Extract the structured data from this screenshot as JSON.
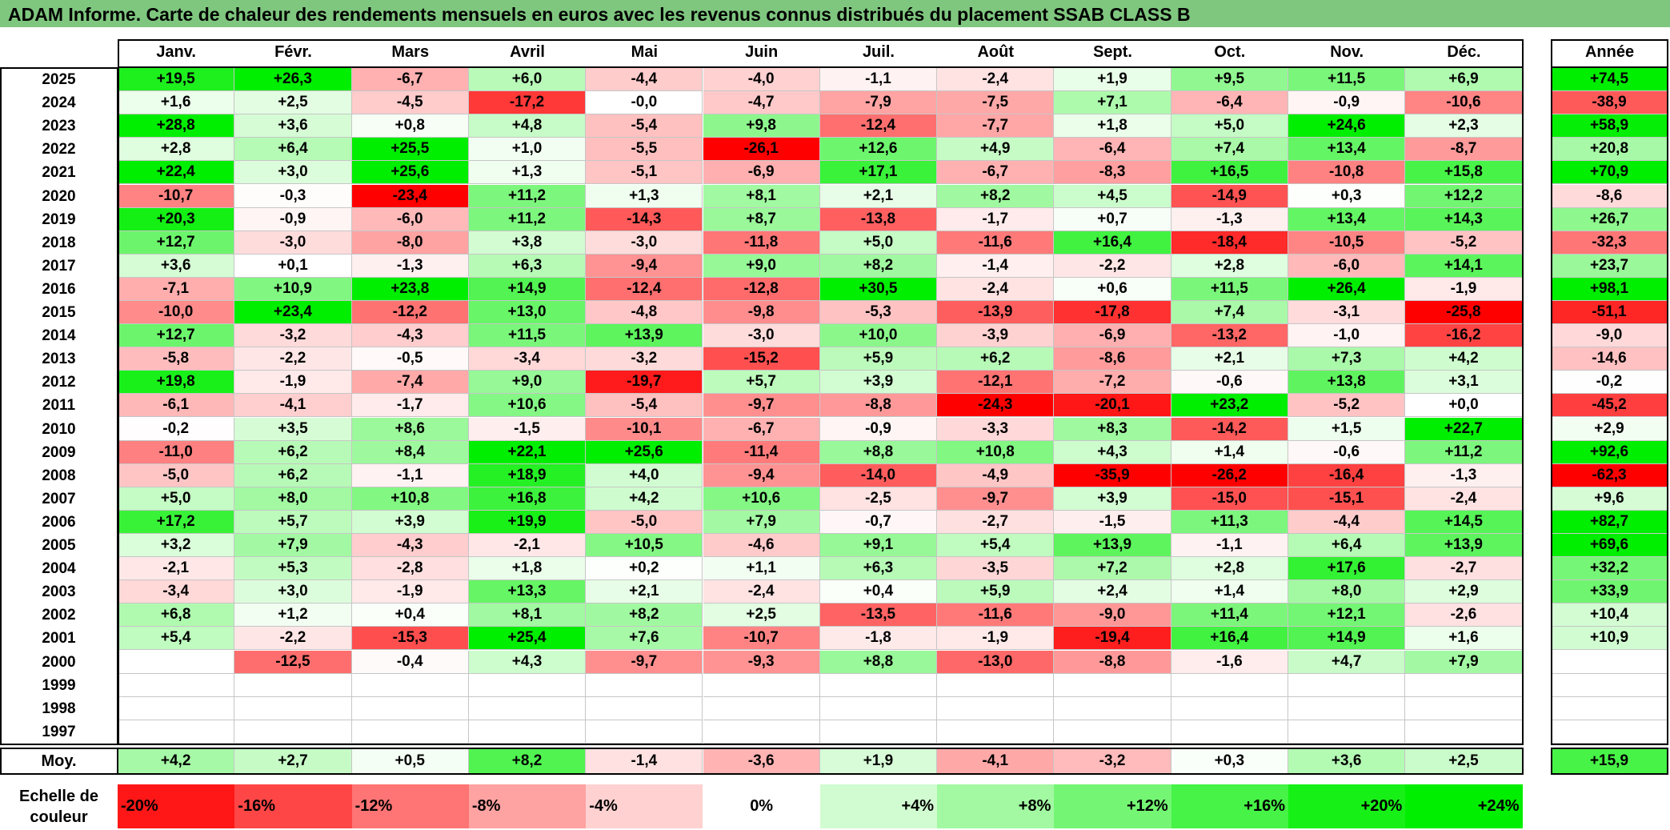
{
  "title": "ADAM Informe. Carte de chaleur des rendements mensuels en euros avec les revenus connus distribués du placement SSAB CLASS B",
  "chart_data": {
    "type": "heatmap",
    "title": "ADAM Informe. Carte de chaleur des rendements mensuels en euros avec les revenus connus distribués du placement SSAB CLASS B",
    "columns": [
      "Janv.",
      "Févr.",
      "Mars",
      "Avril",
      "Mai",
      "Juin",
      "Juil.",
      "Août",
      "Sept.",
      "Oct.",
      "Nov.",
      "Déc."
    ],
    "year_header": "Année",
    "rows": [
      {
        "year": "2025",
        "months": [
          "+19,5",
          "+26,3",
          "-6,7",
          "+6,0",
          "-4,4",
          "-4,0",
          "-1,1",
          "-2,4",
          "+1,9",
          "+9,5",
          "+11,5",
          "+6,9"
        ],
        "annual": "+74,5"
      },
      {
        "year": "2024",
        "months": [
          "+1,6",
          "+2,5",
          "-4,5",
          "-17,2",
          "-0,0",
          "-4,7",
          "-7,9",
          "-7,5",
          "+7,1",
          "-6,4",
          "-0,9",
          "-10,6"
        ],
        "annual": "-38,9"
      },
      {
        "year": "2023",
        "months": [
          "+28,8",
          "+3,6",
          "+0,8",
          "+4,8",
          "-5,4",
          "+9,8",
          "-12,4",
          "-7,7",
          "+1,8",
          "+5,0",
          "+24,6",
          "+2,3"
        ],
        "annual": "+58,9"
      },
      {
        "year": "2022",
        "months": [
          "+2,8",
          "+6,4",
          "+25,5",
          "+1,0",
          "-5,5",
          "-26,1",
          "+12,6",
          "+4,9",
          "-6,4",
          "+7,4",
          "+13,4",
          "-8,7"
        ],
        "annual": "+20,8"
      },
      {
        "year": "2021",
        "months": [
          "+22,4",
          "+3,0",
          "+25,6",
          "+1,3",
          "-5,1",
          "-6,9",
          "+17,1",
          "-6,7",
          "-8,3",
          "+16,5",
          "-10,8",
          "+15,8"
        ],
        "annual": "+70,9"
      },
      {
        "year": "2020",
        "months": [
          "-10,7",
          "-0,3",
          "-23,4",
          "+11,2",
          "+1,3",
          "+8,1",
          "+2,1",
          "+8,2",
          "+4,5",
          "-14,9",
          "+0,3",
          "+12,2"
        ],
        "annual": "-8,6"
      },
      {
        "year": "2019",
        "months": [
          "+20,3",
          "-0,9",
          "-6,0",
          "+11,2",
          "-14,3",
          "+8,7",
          "-13,8",
          "-1,7",
          "+0,7",
          "-1,3",
          "+13,4",
          "+14,3"
        ],
        "annual": "+26,7"
      },
      {
        "year": "2018",
        "months": [
          "+12,7",
          "-3,0",
          "-8,0",
          "+3,8",
          "-3,0",
          "-11,8",
          "+5,0",
          "-11,6",
          "+16,4",
          "-18,4",
          "-10,5",
          "-5,2"
        ],
        "annual": "-32,3"
      },
      {
        "year": "2017",
        "months": [
          "+3,6",
          "+0,1",
          "-1,3",
          "+6,3",
          "-9,4",
          "+9,0",
          "+8,2",
          "-1,4",
          "-2,2",
          "+2,8",
          "-6,0",
          "+14,1"
        ],
        "annual": "+23,7"
      },
      {
        "year": "2016",
        "months": [
          "-7,1",
          "+10,9",
          "+23,8",
          "+14,9",
          "-12,4",
          "-12,8",
          "+30,5",
          "-2,4",
          "+0,6",
          "+11,5",
          "+26,4",
          "-1,9"
        ],
        "annual": "+98,1"
      },
      {
        "year": "2015",
        "months": [
          "-10,0",
          "+23,4",
          "-12,2",
          "+13,0",
          "-4,8",
          "-9,8",
          "-5,3",
          "-13,9",
          "-17,8",
          "+7,4",
          "-3,1",
          "-25,8"
        ],
        "annual": "-51,1"
      },
      {
        "year": "2014",
        "months": [
          "+12,7",
          "-3,2",
          "-4,3",
          "+11,5",
          "+13,9",
          "-3,0",
          "+10,0",
          "-3,9",
          "-6,9",
          "-13,2",
          "-1,0",
          "-16,2"
        ],
        "annual": "-9,0"
      },
      {
        "year": "2013",
        "months": [
          "-5,8",
          "-2,2",
          "-0,5",
          "-3,4",
          "-3,2",
          "-15,2",
          "+5,9",
          "+6,2",
          "-8,6",
          "+2,1",
          "+7,3",
          "+4,2"
        ],
        "annual": "-14,6"
      },
      {
        "year": "2012",
        "months": [
          "+19,8",
          "-1,9",
          "-7,4",
          "+9,0",
          "-19,7",
          "+5,7",
          "+3,9",
          "-12,1",
          "-7,2",
          "-0,6",
          "+13,8",
          "+3,1"
        ],
        "annual": "-0,2"
      },
      {
        "year": "2011",
        "months": [
          "-6,1",
          "-4,1",
          "-1,7",
          "+10,6",
          "-5,4",
          "-9,7",
          "-8,8",
          "-24,3",
          "-20,1",
          "+23,2",
          "-5,2",
          "+0,0"
        ],
        "annual": "-45,2"
      },
      {
        "year": "2010",
        "months": [
          "-0,2",
          "+3,5",
          "+8,6",
          "-1,5",
          "-10,1",
          "-6,7",
          "-0,9",
          "-3,3",
          "+8,3",
          "-14,2",
          "+1,5",
          "+22,7"
        ],
        "annual": "+2,9"
      },
      {
        "year": "2009",
        "months": [
          "-11,0",
          "+6,2",
          "+8,4",
          "+22,1",
          "+25,6",
          "-11,4",
          "+8,8",
          "+10,8",
          "+4,3",
          "+1,4",
          "-0,6",
          "+11,2"
        ],
        "annual": "+92,6"
      },
      {
        "year": "2008",
        "months": [
          "-5,0",
          "+6,2",
          "-1,1",
          "+18,9",
          "+4,0",
          "-9,4",
          "-14,0",
          "-4,9",
          "-35,9",
          "-26,2",
          "-16,4",
          "-1,3"
        ],
        "annual": "-62,3"
      },
      {
        "year": "2007",
        "months": [
          "+5,0",
          "+8,0",
          "+10,8",
          "+16,8",
          "+4,2",
          "+10,6",
          "-2,5",
          "-9,7",
          "+3,9",
          "-15,0",
          "-15,1",
          "-2,4"
        ],
        "annual": "+9,6"
      },
      {
        "year": "2006",
        "months": [
          "+17,2",
          "+5,7",
          "+3,9",
          "+19,9",
          "-5,0",
          "+7,9",
          "-0,7",
          "-2,7",
          "-1,5",
          "+11,3",
          "-4,4",
          "+14,5"
        ],
        "annual": "+82,7"
      },
      {
        "year": "2005",
        "months": [
          "+3,2",
          "+7,9",
          "-4,3",
          "-2,1",
          "+10,5",
          "-4,6",
          "+9,1",
          "+5,4",
          "+13,9",
          "-1,1",
          "+6,4",
          "+13,9"
        ],
        "annual": "+69,6"
      },
      {
        "year": "2004",
        "months": [
          "-2,1",
          "+5,3",
          "-2,8",
          "+1,8",
          "+0,2",
          "+1,1",
          "+6,3",
          "-3,5",
          "+7,2",
          "+2,8",
          "+17,6",
          "-2,7"
        ],
        "annual": "+32,2"
      },
      {
        "year": "2003",
        "months": [
          "-3,4",
          "+3,0",
          "-1,9",
          "+13,3",
          "+2,1",
          "-2,4",
          "+0,4",
          "+5,9",
          "+2,4",
          "+1,4",
          "+8,0",
          "+2,9"
        ],
        "annual": "+33,9"
      },
      {
        "year": "2002",
        "months": [
          "+6,8",
          "+1,2",
          "+0,4",
          "+8,1",
          "+8,2",
          "+2,5",
          "-13,5",
          "-11,6",
          "-9,0",
          "+11,4",
          "+12,1",
          "-2,6"
        ],
        "annual": "+10,4"
      },
      {
        "year": "2001",
        "months": [
          "+5,4",
          "-2,2",
          "-15,3",
          "+25,4",
          "+7,6",
          "-10,7",
          "-1,8",
          "-1,9",
          "-19,4",
          "+16,4",
          "+14,9",
          "+1,6"
        ],
        "annual": "+10,9"
      },
      {
        "year": "2000",
        "months": [
          "",
          "-12,5",
          "-0,4",
          "+4,3",
          "-9,7",
          "-9,3",
          "+8,8",
          "-13,0",
          "-8,8",
          "-1,6",
          "+4,7",
          "+7,9"
        ],
        "annual": ""
      },
      {
        "year": "1999",
        "months": [
          "",
          "",
          "",
          "",
          "",
          "",
          "",
          "",
          "",
          "",
          "",
          ""
        ],
        "annual": ""
      },
      {
        "year": "1998",
        "months": [
          "",
          "",
          "",
          "",
          "",
          "",
          "",
          "",
          "",
          "",
          "",
          ""
        ],
        "annual": ""
      },
      {
        "year": "1997",
        "months": [
          "",
          "",
          "",
          "",
          "",
          "",
          "",
          "",
          "",
          "",
          "",
          ""
        ],
        "annual": ""
      }
    ],
    "average": {
      "label": "Moy.",
      "months": [
        "+4,2",
        "+2,7",
        "+0,5",
        "+8,2",
        "-1,4",
        "-3,6",
        "+1,9",
        "-4,1",
        "-3,2",
        "+0,3",
        "+3,6",
        "+2,5"
      ],
      "annual": "+15,9"
    },
    "scale": {
      "label_line1": "Echelle de",
      "label_line2": "couleur",
      "steps": [
        {
          "label": "-20%",
          "value": -20
        },
        {
          "label": "-16%",
          "value": -16
        },
        {
          "label": "-12%",
          "value": -12
        },
        {
          "label": "-8%",
          "value": -8
        },
        {
          "label": "-4%",
          "value": -4
        },
        {
          "label": "0%",
          "value": 0
        },
        {
          "label": "+4%",
          "value": 4
        },
        {
          "label": "+8%",
          "value": 8
        },
        {
          "label": "+12%",
          "value": 12
        },
        {
          "label": "+16%",
          "value": 16
        },
        {
          "label": "+20%",
          "value": 20
        },
        {
          "label": "+24%",
          "value": 24
        }
      ]
    },
    "colors": {
      "negative_max": "#ff0000",
      "neutral": "#ffffff",
      "positive_max": "#00ee00",
      "title_bar": "#7fc77f"
    }
  }
}
